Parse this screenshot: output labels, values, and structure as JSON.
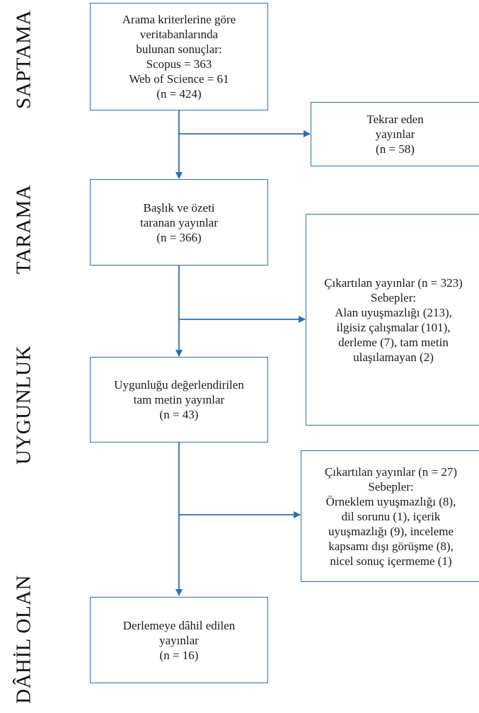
{
  "stages": {
    "identification": "SAPTAMA",
    "screening": "TARAMA",
    "eligibility": "UYGUNLUK",
    "included": "DÂHİL OLAN"
  },
  "boxes": {
    "records_identified": {
      "lines": [
        "Arama kriterlerine göre",
        "veritabanlarında",
        "bulunan sonuçlar:",
        "Scopus = 363",
        "Web of Science = 61",
        "(n = 424)"
      ]
    },
    "duplicates_removed": {
      "lines": [
        "Tekrar eden",
        "yayınlar",
        "(n = 58)"
      ]
    },
    "records_screened": {
      "lines": [
        "Başlık ve özeti",
        "taranan yayınlar",
        "(n = 366)"
      ]
    },
    "records_excluded": {
      "lines": [
        "Çıkartılan yayınlar (n = 323)",
        "Sebepler:",
        "Alan uyuşmazlığı (213),",
        "ilgisiz çalışmalar (101),",
        "derleme (7), tam metin",
        "ulaşılamayan (2)"
      ]
    },
    "fulltext_assessed": {
      "lines": [
        "Uygunluğu değerlendirilen",
        "tam metin yayınlar",
        "(n = 43)"
      ]
    },
    "fulltext_excluded": {
      "lines": [
        "Çıkartılan yayınlar (n = 27)",
        "Sebepler:",
        "Örneklem uyuşmazlığı (8),",
        "dil sorunu (1), içerik",
        "uyuşmazlığı (9), inceleme",
        "kapsamı dışı görüşme (8),",
        "nicel sonuç içermeme (1)"
      ]
    },
    "studies_included": {
      "lines": [
        "Derlemeye dâhil edilen",
        "yayınlar",
        "(n = 16)"
      ]
    }
  },
  "colors": {
    "box_border": "#2e6db4",
    "arrow": "#2e6db4",
    "text": "#1a1a1a"
  }
}
